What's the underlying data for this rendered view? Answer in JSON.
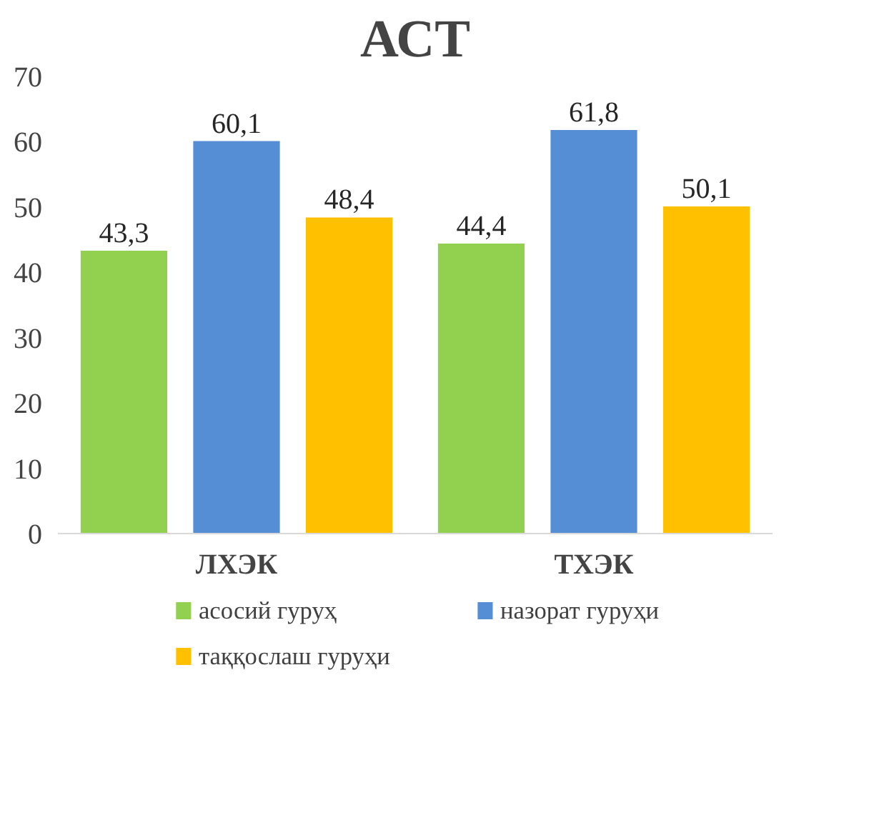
{
  "chart_data": {
    "type": "bar",
    "title": "АСТ",
    "categories": [
      "ЛХЭК",
      "ТХЭК"
    ],
    "series": [
      {
        "name": "асосий гуруҳ",
        "color": "#92d050",
        "values": [
          43.3,
          44.4
        ],
        "value_labels": [
          "43,3",
          "44,4"
        ]
      },
      {
        "name": "назорат гуруҳи",
        "color": "#558ed5",
        "values": [
          60.1,
          61.8
        ],
        "value_labels": [
          "60,1",
          "61,8"
        ]
      },
      {
        "name": "таққослаш гуруҳи",
        "color": "#ffc000",
        "values": [
          48.4,
          50.1
        ],
        "value_labels": [
          "48,4",
          "50,1"
        ]
      }
    ],
    "ylim": [
      0,
      70
    ],
    "yticks": [
      0,
      10,
      20,
      30,
      40,
      50,
      60,
      70
    ],
    "grid": false,
    "legend": "bottom"
  }
}
